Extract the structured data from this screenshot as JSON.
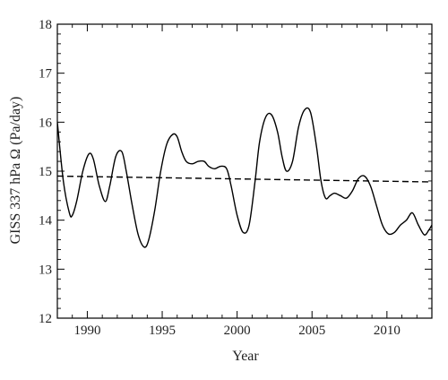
{
  "chart_data": {
    "type": "line",
    "xlabel": "Year",
    "ylabel": "GISS 337 hPa Ω (Pa/day)",
    "xlim": [
      1988,
      2013
    ],
    "ylim": [
      12,
      18
    ],
    "xticks": [
      1990,
      1995,
      2000,
      2005,
      2010
    ],
    "yticks": [
      12,
      13,
      14,
      15,
      16,
      17,
      18
    ],
    "x_minor_step": 1,
    "y_minor_step": 0.2,
    "grid": false,
    "legend": "none",
    "series": [
      {
        "style": "solid",
        "color": "#000000",
        "x": [
          1988.0,
          1988.4,
          1988.8,
          1989.0,
          1989.3,
          1989.7,
          1990.1,
          1990.4,
          1990.8,
          1991.2,
          1991.5,
          1991.9,
          1992.3,
          1992.6,
          1993.0,
          1993.4,
          1993.8,
          1994.1,
          1994.5,
          1994.9,
          1995.3,
          1995.7,
          1996.0,
          1996.3,
          1996.6,
          1997.0,
          1997.4,
          1997.8,
          1998.1,
          1998.5,
          1998.9,
          1999.3,
          1999.6,
          2000.0,
          2000.4,
          2000.8,
          2001.2,
          2001.5,
          2001.9,
          2002.3,
          2002.7,
          2003.0,
          2003.3,
          2003.7,
          2004.1,
          2004.5,
          2004.9,
          2005.3,
          2005.6,
          2005.9,
          2006.2,
          2006.5,
          2006.9,
          2007.3,
          2007.7,
          2008.1,
          2008.5,
          2008.9,
          2009.3,
          2009.7,
          2010.1,
          2010.5,
          2010.9,
          2011.3,
          2011.7,
          2012.1,
          2012.5,
          2012.8,
          2013.0
        ],
        "y": [
          16.0,
          14.8,
          14.15,
          14.1,
          14.4,
          15.0,
          15.35,
          15.25,
          14.7,
          14.38,
          14.7,
          15.3,
          15.4,
          15.0,
          14.3,
          13.7,
          13.45,
          13.6,
          14.2,
          15.0,
          15.55,
          15.75,
          15.7,
          15.4,
          15.2,
          15.15,
          15.2,
          15.2,
          15.1,
          15.05,
          15.1,
          15.05,
          14.7,
          14.1,
          13.75,
          13.9,
          14.8,
          15.6,
          16.1,
          16.15,
          15.8,
          15.3,
          15.0,
          15.2,
          15.9,
          16.25,
          16.2,
          15.5,
          14.8,
          14.45,
          14.5,
          14.55,
          14.5,
          14.45,
          14.6,
          14.85,
          14.9,
          14.7,
          14.3,
          13.9,
          13.72,
          13.75,
          13.9,
          14.0,
          14.15,
          13.9,
          13.7,
          13.8,
          13.9
        ]
      },
      {
        "style": "dashed",
        "color": "#000000",
        "x": [
          1988,
          2013
        ],
        "y": [
          14.9,
          14.78
        ]
      }
    ]
  }
}
